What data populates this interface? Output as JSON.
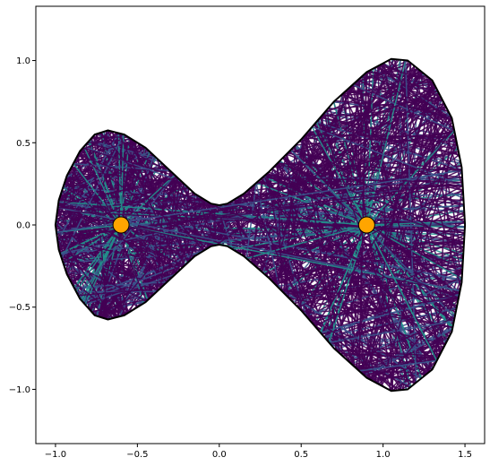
{
  "chart_data": {
    "type": "line",
    "title": "",
    "xlabel": "",
    "ylabel": "",
    "xlim": [
      -1.12,
      1.62
    ],
    "ylim": [
      -1.33,
      1.33
    ],
    "x_ticks": [
      -1.0,
      -0.5,
      0.0,
      0.5,
      1.0,
      1.5
    ],
    "x_tick_labels": [
      "−1.0",
      "−0.5",
      "0.0",
      "0.5",
      "1.0",
      "1.5"
    ],
    "y_ticks": [
      -1.0,
      -0.5,
      0.0,
      0.5,
      1.0
    ],
    "y_tick_labels": [
      "−1.0",
      "−0.5",
      "0.0",
      "0.5",
      "1.0"
    ],
    "grid": false,
    "legend": "none",
    "boundary": {
      "color": "#000000",
      "points": [
        [
          -1.0,
          0.0
        ],
        [
          -0.98,
          0.15
        ],
        [
          -0.93,
          0.3
        ],
        [
          -0.85,
          0.45
        ],
        [
          -0.76,
          0.55
        ],
        [
          -0.68,
          0.575
        ],
        [
          -0.58,
          0.55
        ],
        [
          -0.45,
          0.47
        ],
        [
          -0.3,
          0.33
        ],
        [
          -0.15,
          0.19
        ],
        [
          -0.05,
          0.13
        ],
        [
          0.0,
          0.12
        ],
        [
          0.05,
          0.13
        ],
        [
          0.15,
          0.19
        ],
        [
          0.3,
          0.32
        ],
        [
          0.5,
          0.52
        ],
        [
          0.7,
          0.75
        ],
        [
          0.9,
          0.93
        ],
        [
          1.05,
          1.01
        ],
        [
          1.15,
          1.0
        ],
        [
          1.3,
          0.88
        ],
        [
          1.42,
          0.65
        ],
        [
          1.48,
          0.35
        ],
        [
          1.5,
          0.0
        ],
        [
          1.48,
          -0.35
        ],
        [
          1.42,
          -0.65
        ],
        [
          1.3,
          -0.88
        ],
        [
          1.15,
          -1.0
        ],
        [
          1.05,
          -1.01
        ],
        [
          0.9,
          -0.93
        ],
        [
          0.7,
          -0.75
        ],
        [
          0.5,
          -0.52
        ],
        [
          0.3,
          -0.32
        ],
        [
          0.15,
          -0.19
        ],
        [
          0.05,
          -0.13
        ],
        [
          0.0,
          -0.12
        ],
        [
          -0.05,
          -0.13
        ],
        [
          -0.15,
          -0.19
        ],
        [
          -0.3,
          -0.33
        ],
        [
          -0.45,
          -0.47
        ],
        [
          -0.58,
          -0.55
        ],
        [
          -0.68,
          -0.575
        ],
        [
          -0.76,
          -0.55
        ],
        [
          -0.85,
          -0.45
        ],
        [
          -0.93,
          -0.3
        ],
        [
          -0.98,
          -0.15
        ]
      ]
    },
    "sources": [
      {
        "x": -0.6,
        "y": 0.0,
        "color": "#ffa500"
      },
      {
        "x": 0.9,
        "y": 0.0,
        "color": "#ffa500"
      }
    ],
    "colormap": [
      "#440154",
      "#3b528b",
      "#21918c",
      "#27ad81",
      "#5ec962"
    ],
    "num_rays": 150,
    "max_bounces": 7
  }
}
